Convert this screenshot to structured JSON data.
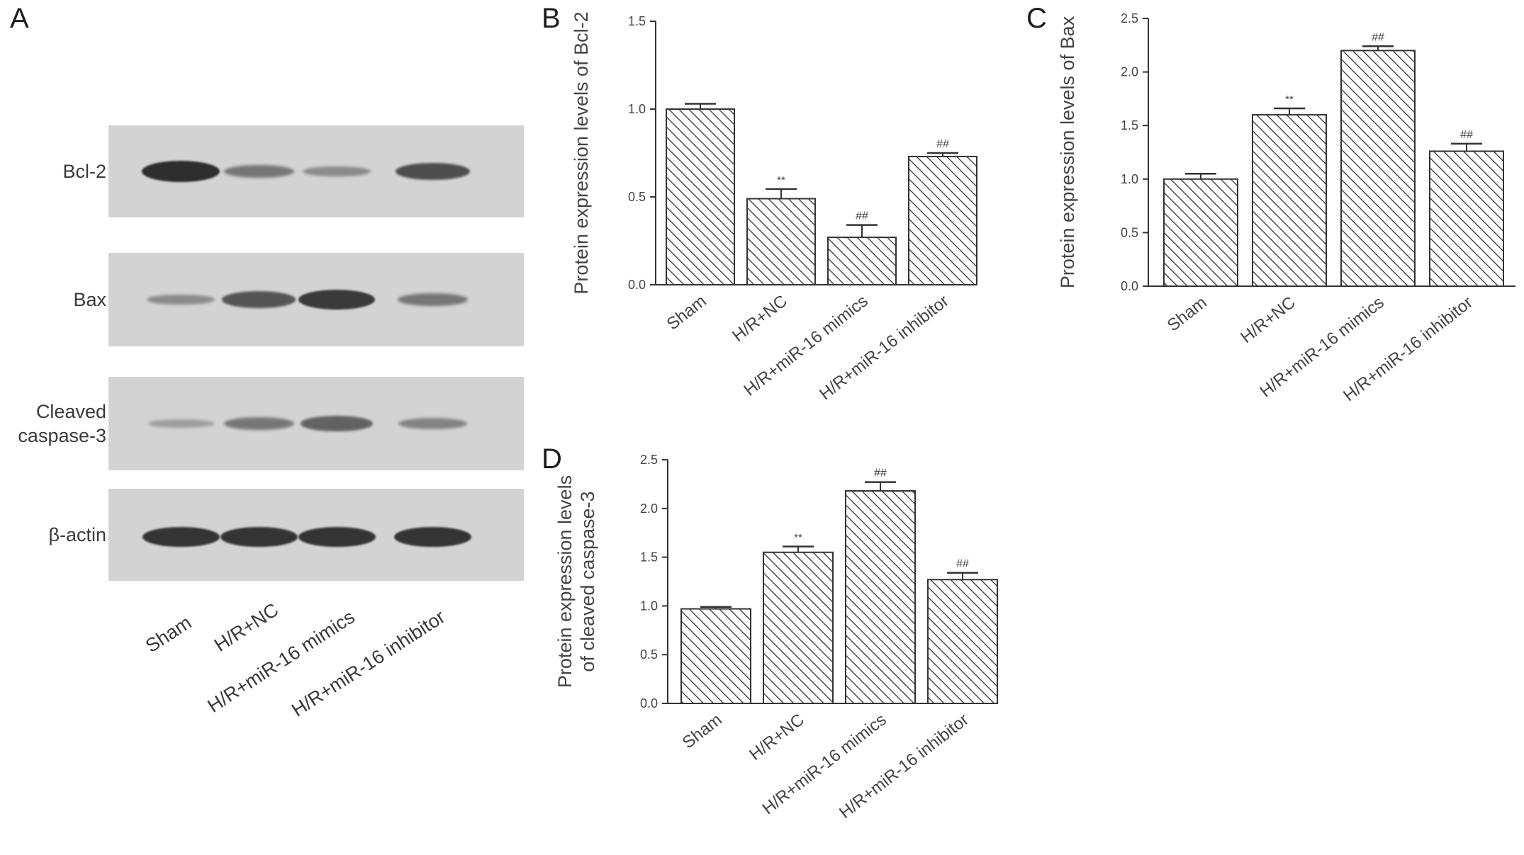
{
  "panel_letters": {
    "a": "A",
    "b": "B",
    "c": "C",
    "d": "D"
  },
  "western_blot": {
    "rows": [
      {
        "label": "Bcl-2",
        "intensity": [
          1.0,
          0.45,
          0.3,
          0.75
        ]
      },
      {
        "label": "Bax",
        "intensity": [
          0.3,
          0.7,
          0.9,
          0.45
        ]
      },
      {
        "label": "Cleaved\ncaspase-3",
        "label_lines": [
          "Cleaved",
          "caspase-3"
        ],
        "intensity": [
          0.15,
          0.45,
          0.6,
          0.35
        ]
      },
      {
        "label": "β-actin",
        "intensity": [
          0.95,
          0.95,
          0.95,
          0.95
        ]
      }
    ],
    "lanes": [
      "Sham",
      "H/R+NC",
      "H/R+miR-16 mimics",
      "H/R+miR-16 inhibitor"
    ]
  },
  "chart_data": [
    {
      "panel": "B",
      "type": "bar",
      "categories": [
        "Sham",
        "H/R+NC",
        "H/R+miR-16 mimics",
        "H/R+miR-16 inhibitor"
      ],
      "values": [
        1.0,
        0.49,
        0.27,
        0.73
      ],
      "errors": [
        0.03,
        0.055,
        0.07,
        0.02
      ],
      "annotations": [
        "",
        "**",
        "##",
        "##"
      ],
      "ylabel_lines": [
        "Protein expression levels of Bcl-2"
      ],
      "ylim": [
        0,
        1.5
      ],
      "yticks": [
        0.0,
        0.5,
        1.0,
        1.5
      ],
      "ytick_labels": [
        "0.0",
        "0.5",
        "1.0",
        "1.5"
      ],
      "pattern": "diagonal-hatch",
      "grid": false
    },
    {
      "panel": "C",
      "type": "bar",
      "categories": [
        "Sham",
        "H/R+NC",
        "H/R+miR-16 mimics",
        "H/R+miR-16 inhibitor"
      ],
      "values": [
        1.0,
        1.6,
        2.2,
        1.26
      ],
      "errors": [
        0.05,
        0.06,
        0.04,
        0.07
      ],
      "annotations": [
        "",
        "**",
        "##",
        "##"
      ],
      "ylabel_lines": [
        "Protein expression levels of Bax"
      ],
      "ylim": [
        0,
        2.5
      ],
      "yticks": [
        0.0,
        0.5,
        1.0,
        1.5,
        2.0,
        2.5
      ],
      "ytick_labels": [
        "0.0",
        "0.5",
        "1.0",
        "1.5",
        "2.0",
        "2.5"
      ],
      "pattern": "diagonal-hatch",
      "grid": false
    },
    {
      "panel": "D",
      "type": "bar",
      "categories": [
        "Sham",
        "H/R+NC",
        "H/R+miR-16 mimics",
        "H/R+miR-16 inhibitor"
      ],
      "values": [
        0.97,
        1.55,
        2.18,
        1.27
      ],
      "errors": [
        0.02,
        0.06,
        0.09,
        0.07
      ],
      "annotations": [
        "",
        "**",
        "##",
        "##"
      ],
      "ylabel_lines": [
        "Protein expression levels",
        "of cleaved caspase-3"
      ],
      "ylim": [
        0,
        2.5
      ],
      "yticks": [
        0.0,
        0.5,
        1.0,
        1.5,
        2.0,
        2.5
      ],
      "ytick_labels": [
        "0.0",
        "0.5",
        "1.0",
        "1.5",
        "2.0",
        "2.5"
      ],
      "pattern": "diagonal-hatch",
      "grid": false
    }
  ]
}
